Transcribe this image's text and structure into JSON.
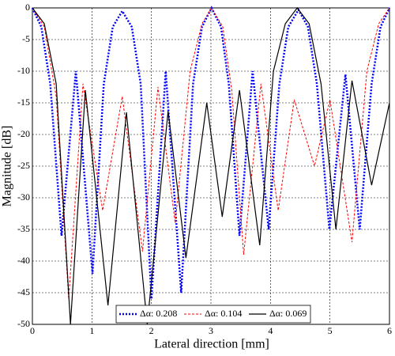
{
  "chart_data": {
    "type": "line",
    "xlabel": "Lateral direction [mm]",
    "ylabel": "Magnitude [dB]",
    "xlim": [
      0,
      6
    ],
    "ylim": [
      -50,
      0
    ],
    "xticks": [
      0,
      1,
      2,
      3,
      4,
      5,
      6
    ],
    "yticks": [
      0,
      -5,
      -10,
      -15,
      -20,
      -25,
      -30,
      -35,
      -40,
      -45,
      -50
    ],
    "grid": true,
    "legend": "bottom",
    "series": [
      {
        "name": "Δα: 0.208",
        "color": "#0000ff",
        "style": "dotted",
        "x": [
          0,
          0.15,
          0.3,
          0.49,
          0.73,
          1.01,
          1.2,
          1.35,
          1.51,
          1.67,
          1.82,
          2.0,
          2.24,
          2.5,
          2.7,
          2.85,
          3.01,
          3.17,
          3.3,
          3.48,
          3.7,
          3.97,
          4.15,
          4.3,
          4.47,
          4.63,
          4.78,
          4.99,
          5.26,
          5.5,
          5.7,
          5.85,
          6.0
        ],
        "values": [
          0,
          -3,
          -12,
          -36,
          -10,
          -42,
          -12,
          -3,
          -0.5,
          -3,
          -12,
          -46,
          -10,
          -45,
          -12,
          -3,
          0,
          -3,
          -12,
          -36,
          -10,
          -35,
          -12,
          -3,
          -0.3,
          -3,
          -12,
          -35,
          -10.5,
          -35,
          -12,
          -3,
          0
        ]
      },
      {
        "name": "Δα: 0.104",
        "color": "#ff0000",
        "style": "dashed",
        "x": [
          0,
          0.2,
          0.4,
          0.61,
          0.85,
          1.18,
          1.51,
          1.85,
          2.11,
          2.4,
          2.65,
          2.85,
          3.01,
          3.2,
          3.35,
          3.55,
          3.84,
          4.13,
          4.4,
          4.74,
          5.0,
          5.37,
          5.62,
          5.82,
          6.0
        ],
        "values": [
          0,
          -3,
          -14,
          -46,
          -12,
          -32,
          -14,
          -38.5,
          -12.5,
          -34,
          -10,
          -2.5,
          0,
          -3,
          -13,
          -39,
          -12,
          -32,
          -14.5,
          -25,
          -14.5,
          -37,
          -10,
          -2.5,
          0
        ]
      },
      {
        "name": "Δα: 0.069",
        "color": "#000000",
        "style": "solid",
        "x": [
          0,
          0.2,
          0.4,
          0.64,
          0.89,
          1.27,
          1.58,
          1.93,
          2.28,
          2.58,
          2.93,
          3.19,
          3.48,
          3.82,
          4.05,
          4.25,
          4.45,
          4.65,
          4.85,
          5.1,
          5.37,
          5.7,
          6.0
        ],
        "values": [
          0,
          -2.5,
          -12,
          -50,
          -13,
          -47,
          -16.5,
          -50,
          -16.3,
          -39.5,
          -15,
          -33,
          -13,
          -37.5,
          -10,
          -2.5,
          0,
          -2.5,
          -12,
          -35,
          -11.5,
          -28,
          -15
        ]
      }
    ]
  }
}
